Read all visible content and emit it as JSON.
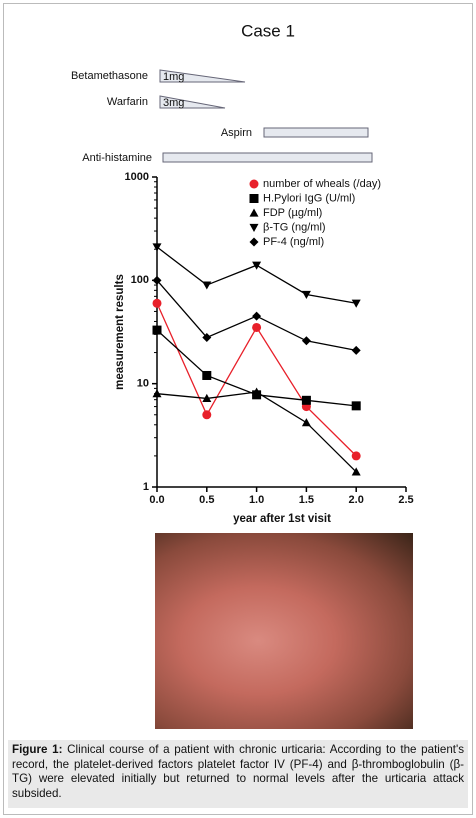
{
  "chart_data": {
    "type": "line",
    "title": "Case 1",
    "treatments": [
      {
        "name": "Betamethasone",
        "dose": "1mg",
        "shape": "wedge"
      },
      {
        "name": "Warfarin",
        "dose": "3mg",
        "shape": "wedge"
      },
      {
        "name": "Aspirn",
        "shape": "bar"
      },
      {
        "name": "Anti-histamine",
        "shape": "bar"
      }
    ],
    "x_label": "year after 1st visit",
    "y_label": "measurement results",
    "x": [
      0,
      0.5,
      1,
      1.5,
      2
    ],
    "xlim": [
      0,
      2.5
    ],
    "xticks": [
      {
        "value": 0,
        "label": "0.0"
      },
      0.5,
      {
        "value": 1,
        "label": "1.0"
      },
      1.5,
      {
        "value": 2,
        "label": "2.0"
      },
      2.5
    ],
    "ylim": [
      1,
      1000
    ],
    "yticks": [
      1,
      10,
      100,
      1000
    ],
    "y_scale": "log",
    "series": [
      {
        "name": "number of wheals (/day)",
        "color": "#e8202a",
        "marker": "circle",
        "values": [
          60,
          5,
          35,
          6,
          2
        ]
      },
      {
        "name": "H.Pylori IgG (U/ml)",
        "color": "#000000",
        "marker": "square",
        "values": [
          33,
          12,
          7.8,
          6.9,
          6.1
        ]
      },
      {
        "name": "FDP (µg/ml)",
        "color": "#000000",
        "marker": "triangle-up",
        "values": [
          8,
          7.2,
          8.3,
          4.2,
          1.4
        ]
      },
      {
        "name": "β-TG (ng/ml)",
        "color": "#000000",
        "marker": "triangle-down",
        "values": [
          210,
          90,
          140,
          73,
          60
        ]
      },
      {
        "name": "PF-4 (ng/ml)",
        "color": "#000000",
        "marker": "diamond",
        "values": [
          100,
          28,
          45,
          26,
          21
        ]
      }
    ]
  },
  "caption": {
    "label": "Figure 1:",
    "text": "Clinical course of a patient with chronic urticaria: According to the patient's record, the platelet-derived factors platelet factor IV (PF-4) and β-thromboglobulin (β-TG) were elevated initially but returned to normal levels after the urticaria attack subsided."
  }
}
